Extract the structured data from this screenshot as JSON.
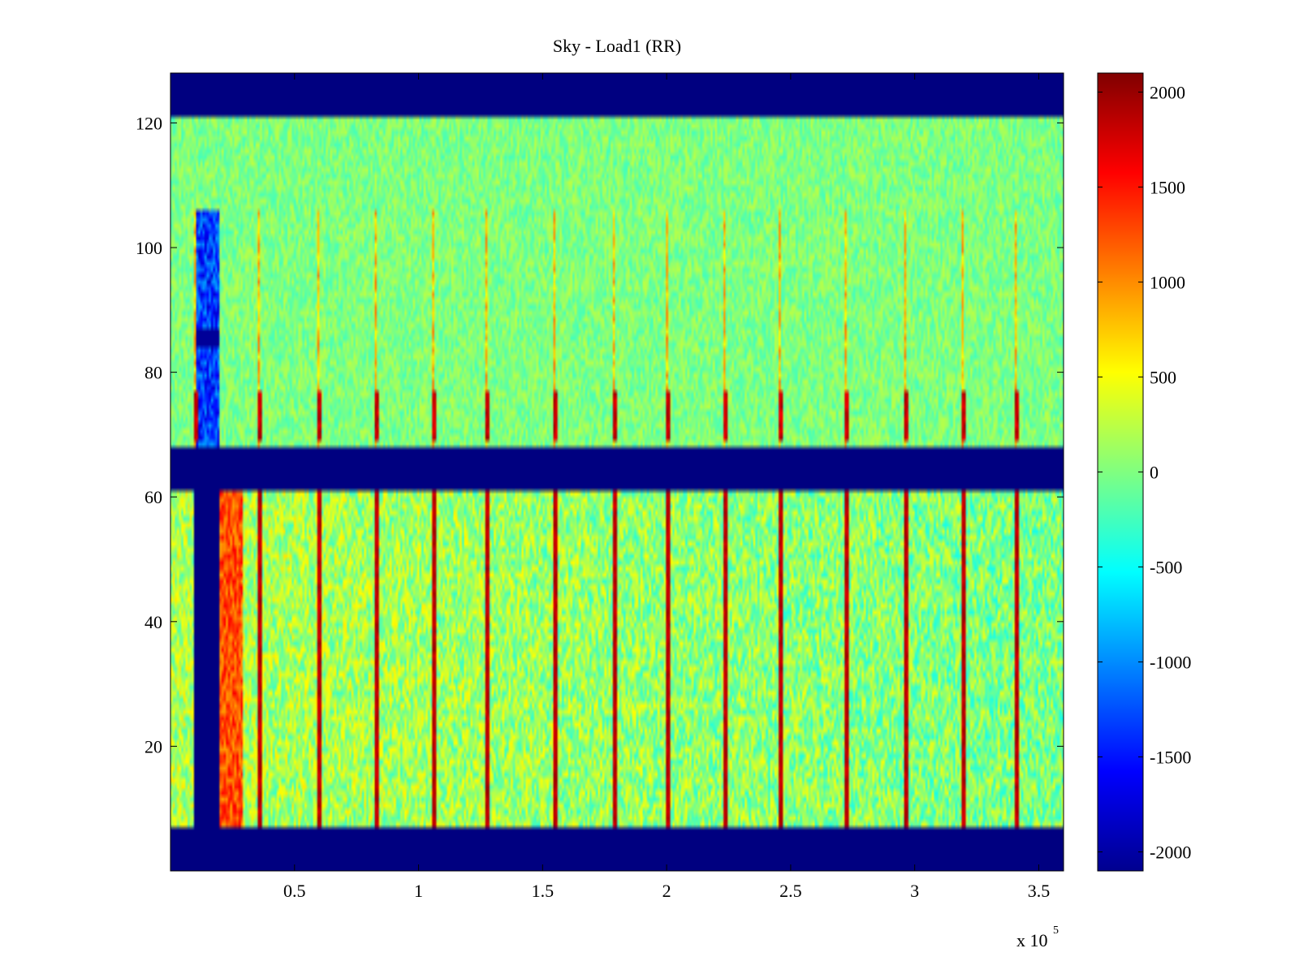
{
  "chart_data": [
    {
      "type": "heatmap",
      "title": "Sky - Load1 (RR)",
      "xlabel": "",
      "ylabel": "",
      "x_exponent_label": "x 10",
      "x_exponent_power": "5",
      "xlim": [
        0,
        3.6
      ],
      "ylim": [
        0,
        128
      ],
      "x_ticks": [
        0.5,
        1,
        1.5,
        2,
        2.5,
        3,
        3.5
      ],
      "x_tick_labels": [
        "0.5",
        "1",
        "1.5",
        "2",
        "2.5",
        "3",
        "3.5"
      ],
      "y_ticks": [
        20,
        40,
        60,
        80,
        100,
        120
      ],
      "y_tick_labels": [
        "20",
        "40",
        "60",
        "80",
        "100",
        "120"
      ],
      "colormap": "jet",
      "clim": [
        -2100,
        2100
      ],
      "masked_value": -2100,
      "masked_row_bands": [
        [
          0,
          7
        ],
        [
          61,
          68
        ],
        [
          121,
          128
        ]
      ],
      "regions": [
        {
          "rows": [
            7,
            61
          ],
          "typical_value": 150,
          "description_free": true
        },
        {
          "rows": [
            68,
            121
          ],
          "typical_value": 0
        }
      ],
      "masked_column_band_rows_7_61_x": [
        0.095,
        0.2
      ],
      "strong_column_x": [
        0.09,
        0.35,
        0.59,
        0.82,
        1.05,
        1.27,
        1.54,
        1.78,
        2.0,
        2.23,
        2.45,
        2.72,
        2.96,
        3.19,
        3.4
      ],
      "warm_band_x": [
        0.2,
        0.29
      ],
      "cool_band_rows_68_106_x": [
        0.1,
        0.2
      ],
      "colorbar": {
        "ticks": [
          2000,
          1500,
          1000,
          500,
          0,
          -500,
          -1000,
          -1500,
          -2000
        ],
        "tick_labels": [
          "2000",
          "1500",
          "1000",
          "500",
          "0",
          "-500",
          "-1000",
          "-1500",
          "-2000"
        ],
        "range": [
          -2100,
          2100
        ]
      }
    }
  ]
}
